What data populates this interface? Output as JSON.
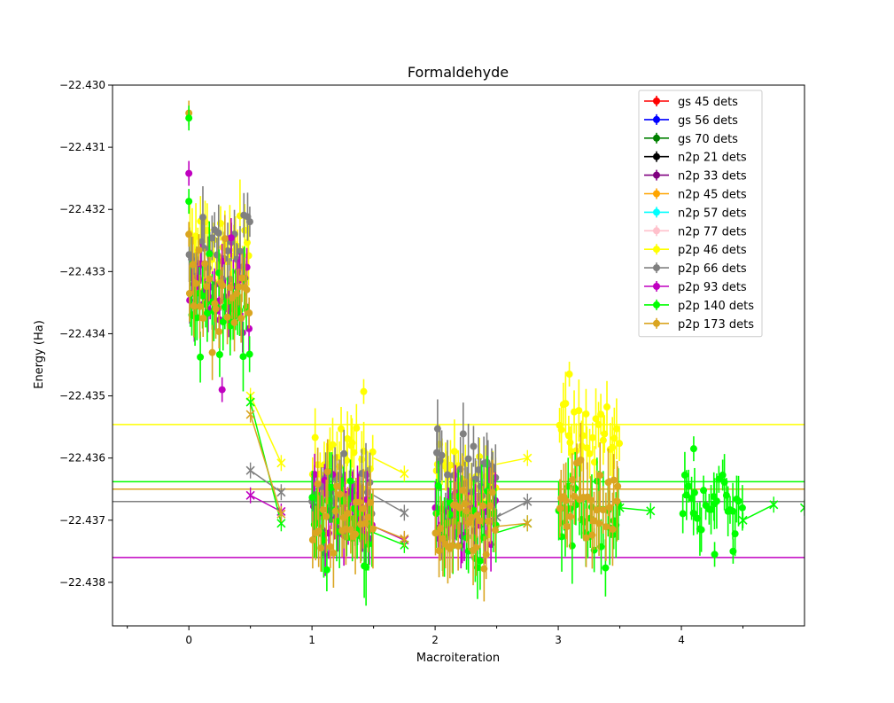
{
  "chart_data": {
    "type": "scatter",
    "title": "Formaldehyde",
    "xlabel": "Macroiteration",
    "ylabel": "Energy (Ha)",
    "xlim": [
      -0.62,
      5.0
    ],
    "ylim": [
      -22.4387,
      -22.43
    ],
    "x_ticks": [
      0,
      1,
      2,
      3,
      4
    ],
    "x_tick_labels": [
      "0",
      "1",
      "2",
      "3",
      "4"
    ],
    "y_ticks": [
      -22.43,
      -22.431,
      -22.432,
      -22.433,
      -22.434,
      -22.435,
      -22.436,
      -22.437,
      -22.438
    ],
    "y_tick_labels": [
      "−22.430",
      "−22.431",
      "−22.432",
      "−22.433",
      "−22.434",
      "−22.435",
      "−22.436",
      "−22.437",
      "−22.438"
    ],
    "grid": false,
    "legend_position": "top-right",
    "legend": [
      {
        "label": "gs 45 dets",
        "color": "#ff0000"
      },
      {
        "label": "gs 56 dets",
        "color": "#0000ff"
      },
      {
        "label": "gs 70 dets",
        "color": "#008000"
      },
      {
        "label": "n2p 21 dets",
        "color": "#000000"
      },
      {
        "label": "n2p 33 dets",
        "color": "#800080"
      },
      {
        "label": "n2p 45 dets",
        "color": "#ffa500"
      },
      {
        "label": "n2p 57 dets",
        "color": "#00ffff"
      },
      {
        "label": "n2p 77 dets",
        "color": "#ffc0cb"
      },
      {
        "label": "p2p 46 dets",
        "color": "#ffff00"
      },
      {
        "label": "p2p 66 dets",
        "color": "#808080"
      },
      {
        "label": "p2p 93 dets",
        "color": "#c000c0"
      },
      {
        "label": "p2p 140 dets",
        "color": "#00ff00"
      },
      {
        "label": "p2p 173 dets",
        "color": "#daa520"
      }
    ],
    "reference_lines": [
      {
        "series": "p2p 46 dets",
        "y": -22.43546,
        "color": "#ffff00"
      },
      {
        "series": "p2p 140 dets",
        "y": -22.43638,
        "color": "#00ff00"
      },
      {
        "series": "p2p 173 dets",
        "y": -22.4365,
        "color": "#daa520"
      },
      {
        "series": "p2p 66 dets",
        "y": -22.4367,
        "color": "#808080"
      },
      {
        "series": "p2p 93 dets",
        "y": -22.4376,
        "color": "#c000c0"
      }
    ],
    "series": [
      {
        "name": "p2p 46 dets",
        "color": "#ffff00",
        "clusters": [
          {
            "x0": 0.0,
            "x1": 0.5,
            "y_center": -22.4327,
            "y_spread": 0.0006,
            "err": 0.00045
          },
          {
            "x0": 1.0,
            "x1": 1.5,
            "y_center": -22.436,
            "y_spread": 0.0004,
            "err": 0.0004
          },
          {
            "x0": 2.0,
            "x1": 2.5,
            "y_center": -22.4363,
            "y_spread": 0.0004,
            "err": 0.0004
          },
          {
            "x0": 3.0,
            "x1": 3.5,
            "y_center": -22.4356,
            "y_spread": 0.0005,
            "err": 0.0004
          }
        ],
        "crosses": [
          {
            "x": 0.5,
            "y": -22.435
          },
          {
            "x": 0.75,
            "y": -22.43608
          },
          {
            "x": 1.75,
            "y": -22.43625
          },
          {
            "x": 2.75,
            "y": -22.436
          }
        ],
        "cross_links": [
          [
            [
              0.5,
              -22.435
            ],
            [
              0.75,
              -22.43608
            ]
          ],
          [
            [
              1.5,
              -22.436
            ],
            [
              1.75,
              -22.43625
            ]
          ],
          [
            [
              2.5,
              -22.4361
            ],
            [
              2.75,
              -22.436
            ]
          ]
        ]
      },
      {
        "name": "p2p 66 dets",
        "color": "#808080",
        "clusters": [
          {
            "x0": 0.0,
            "x1": 0.5,
            "y_center": -22.4328,
            "y_spread": 0.0006,
            "err": 0.0004
          },
          {
            "x0": 1.0,
            "x1": 1.5,
            "y_center": -22.4364,
            "y_spread": 0.0005,
            "err": 0.0004
          },
          {
            "x0": 2.0,
            "x1": 2.5,
            "y_center": -22.4363,
            "y_spread": 0.0006,
            "err": 0.00045
          }
        ],
        "crosses": [
          {
            "x": 0.5,
            "y": -22.4362
          },
          {
            "x": 0.75,
            "y": -22.43655
          },
          {
            "x": 1.75,
            "y": -22.43688
          },
          {
            "x": 2.5,
            "y": -22.43695
          },
          {
            "x": 2.75,
            "y": -22.4367
          }
        ],
        "cross_links": [
          [
            [
              0.5,
              -22.4362
            ],
            [
              0.75,
              -22.43655
            ]
          ],
          [
            [
              1.5,
              -22.4366
            ],
            [
              1.75,
              -22.43688
            ]
          ],
          [
            [
              2.5,
              -22.43695
            ],
            [
              2.75,
              -22.4367
            ]
          ]
        ]
      },
      {
        "name": "p2p 93 dets",
        "color": "#c000c0",
        "clusters": [
          {
            "x0": 0.0,
            "x1": 0.5,
            "y_center": -22.4334,
            "y_spread": 0.0006,
            "err": 0.00035
          },
          {
            "x0": 1.0,
            "x1": 1.5,
            "y_center": -22.4368,
            "y_spread": 0.0005,
            "err": 0.0004
          },
          {
            "x0": 2.0,
            "x1": 2.5,
            "y_center": -22.437,
            "y_spread": 0.0005,
            "err": 0.0004
          }
        ],
        "crosses": [
          {
            "x": 0.5,
            "y": -22.4366
          },
          {
            "x": 0.75,
            "y": -22.43686
          },
          {
            "x": 1.75,
            "y": -22.43732
          }
        ],
        "cross_links": [
          [
            [
              0.5,
              -22.4366
            ],
            [
              0.75,
              -22.43686
            ]
          ],
          [
            [
              1.5,
              -22.4371
            ],
            [
              1.75,
              -22.43732
            ]
          ]
        ]
      },
      {
        "name": "p2p 140 dets",
        "color": "#00ff00",
        "clusters": [
          {
            "x0": 0.0,
            "x1": 0.5,
            "y_center": -22.4336,
            "y_spread": 0.0006,
            "err": 0.00045
          },
          {
            "x0": 1.0,
            "x1": 1.5,
            "y_center": -22.437,
            "y_spread": 0.0006,
            "err": 0.0005
          },
          {
            "x0": 2.0,
            "x1": 2.5,
            "y_center": -22.4371,
            "y_spread": 0.0006,
            "err": 0.0005
          },
          {
            "x0": 3.0,
            "x1": 3.5,
            "y_center": -22.4369,
            "y_spread": 0.0006,
            "err": 0.0005
          },
          {
            "x0": 4.0,
            "x1": 4.5,
            "y_center": -22.4367,
            "y_spread": 0.0004,
            "err": 0.00035
          }
        ],
        "crosses": [
          {
            "x": 0.5,
            "y": -22.4351
          },
          {
            "x": 0.75,
            "y": -22.43705
          },
          {
            "x": 1.75,
            "y": -22.4374
          },
          {
            "x": 2.75,
            "y": -22.43705
          },
          {
            "x": 3.5,
            "y": -22.4368
          },
          {
            "x": 3.75,
            "y": -22.43685
          },
          {
            "x": 4.5,
            "y": -22.437
          },
          {
            "x": 4.75,
            "y": -22.43675
          },
          {
            "x": 5.0,
            "y": -22.4368
          }
        ],
        "cross_links": [
          [
            [
              0.5,
              -22.4351
            ],
            [
              0.75,
              -22.43705
            ]
          ],
          [
            [
              1.5,
              -22.4372
            ],
            [
              1.75,
              -22.4374
            ]
          ],
          [
            [
              2.5,
              -22.4372
            ],
            [
              2.75,
              -22.43705
            ]
          ],
          [
            [
              3.5,
              -22.4368
            ],
            [
              3.75,
              -22.43685
            ]
          ],
          [
            [
              4.5,
              -22.437
            ],
            [
              4.75,
              -22.43675
            ]
          ]
        ]
      },
      {
        "name": "p2p 173 dets",
        "color": "#daa520",
        "clusters": [
          {
            "x0": 0.0,
            "x1": 0.5,
            "y_center": -22.4334,
            "y_spread": 0.0006,
            "err": 0.0004
          },
          {
            "x0": 1.0,
            "x1": 1.5,
            "y_center": -22.437,
            "y_spread": 0.0006,
            "err": 0.0005
          },
          {
            "x0": 2.0,
            "x1": 2.5,
            "y_center": -22.4372,
            "y_spread": 0.0005,
            "err": 0.0005
          },
          {
            "x0": 3.0,
            "x1": 3.5,
            "y_center": -22.4368,
            "y_spread": 0.0006,
            "err": 0.0005
          }
        ],
        "crosses": [
          {
            "x": 0.5,
            "y": -22.4353
          },
          {
            "x": 0.75,
            "y": -22.4369
          },
          {
            "x": 1.75,
            "y": -22.4373
          },
          {
            "x": 2.75,
            "y": -22.43705
          }
        ],
        "cross_links": [
          [
            [
              0.5,
              -22.4353
            ],
            [
              0.75,
              -22.4369
            ]
          ],
          [
            [
              1.5,
              -22.4371
            ],
            [
              1.75,
              -22.4373
            ]
          ],
          [
            [
              2.5,
              -22.4371
            ],
            [
              2.75,
              -22.43705
            ]
          ]
        ]
      }
    ],
    "start_points": [
      {
        "series": "p2p 173 dets",
        "x": 0.0,
        "y": -22.43045
      },
      {
        "series": "p2p 140 dets",
        "x": 0.0,
        "y": -22.43053
      },
      {
        "series": "p2p 93 dets",
        "x": 0.0,
        "y": -22.43142
      },
      {
        "series": "p2p 140 dets",
        "x": 0.0,
        "y": -22.43187
      },
      {
        "series": "p2p 173 dets",
        "x": 0.0,
        "y": -22.4324
      },
      {
        "series": "p2p 140 dets",
        "x": 4.1,
        "y": -22.43585
      },
      {
        "series": "p2p 140 dets",
        "x": 4.27,
        "y": -22.43755
      },
      {
        "series": "p2p 140 dets",
        "x": 4.42,
        "y": -22.4375
      },
      {
        "series": "p2p 46 dets",
        "x": 1.42,
        "y": -22.43493
      },
      {
        "series": "p2p 46 dets",
        "x": 3.09,
        "y": -22.43465
      },
      {
        "series": "p2p 93 dets",
        "x": 0.27,
        "y": -22.4349
      }
    ]
  }
}
